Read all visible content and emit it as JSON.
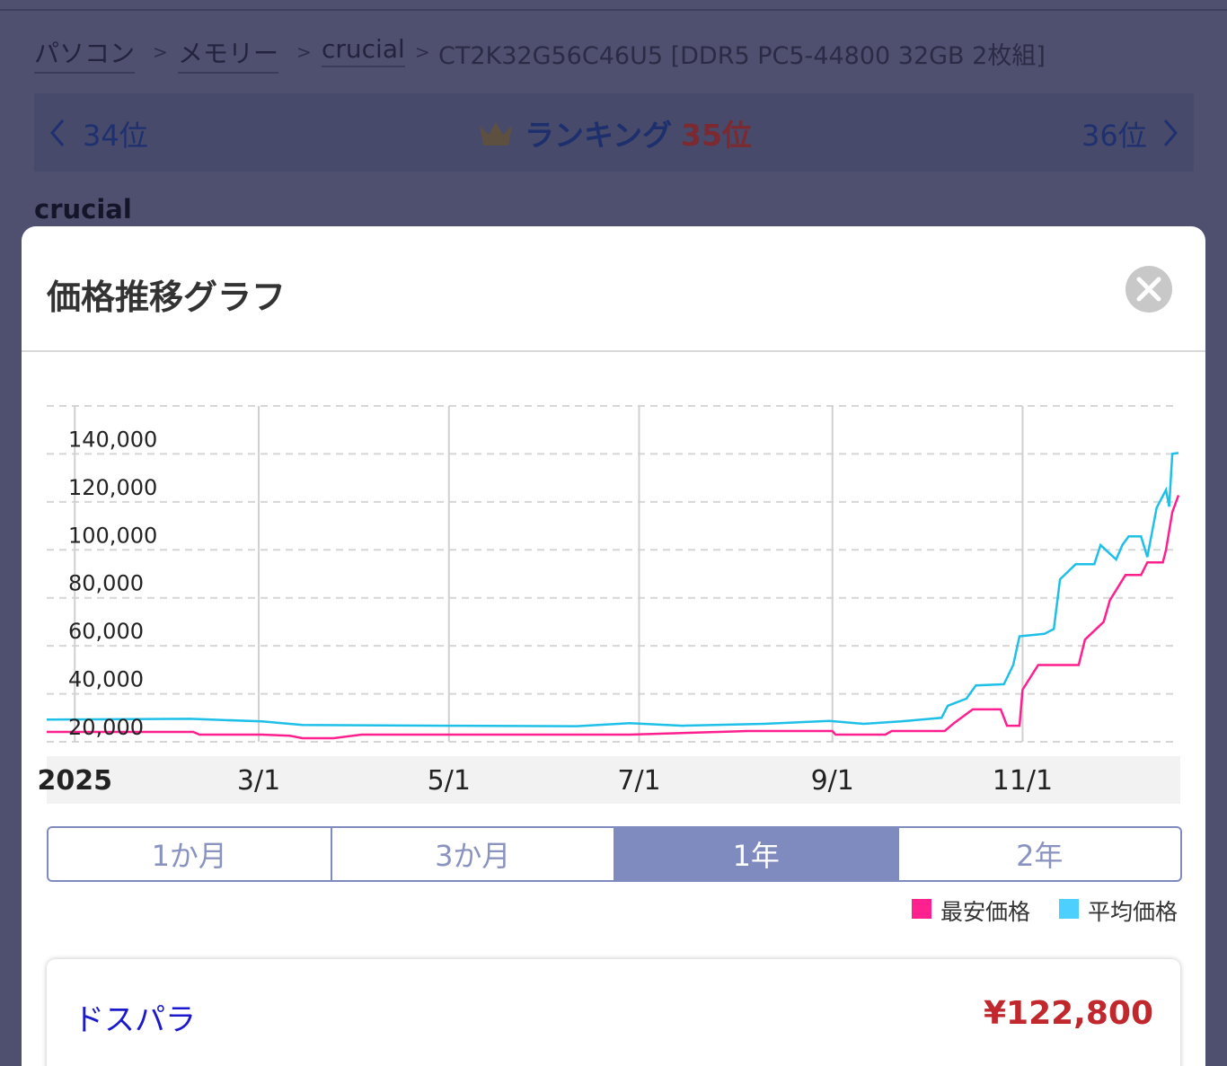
{
  "breadcrumb": {
    "items": [
      "パソコン",
      "メモリー",
      "crucial",
      "CT2K32G56C46U5 [DDR5 PC5-44800 32GB 2枚組]"
    ],
    "separator": ">"
  },
  "ranking": {
    "prev": "34位",
    "label": "ランキング",
    "current": "35位",
    "next": "36位"
  },
  "brand": "crucial",
  "modal": {
    "title": "価格推移グラフ"
  },
  "chart_data": {
    "type": "line",
    "xlim": [
      -9,
      354
    ],
    "xticks": [
      {
        "value": 0,
        "label": "2025"
      },
      {
        "value": 59,
        "label": "3/1"
      },
      {
        "value": 120,
        "label": "5/1"
      },
      {
        "value": 181,
        "label": "7/1"
      },
      {
        "value": 243,
        "label": "9/1"
      },
      {
        "value": 304,
        "label": "11/1"
      }
    ],
    "ylim": [
      20000,
      160000
    ],
    "yticks": [
      {
        "value": 20000,
        "label": "20,000"
      },
      {
        "value": 40000,
        "label": "40,000"
      },
      {
        "value": 60000,
        "label": "60,000"
      },
      {
        "value": 80000,
        "label": "80,000"
      },
      {
        "value": 100000,
        "label": "100,000"
      },
      {
        "value": 120000,
        "label": "120,000"
      },
      {
        "value": 140000,
        "label": "140,000"
      }
    ],
    "grid": true,
    "series": [
      {
        "name": "最安価格",
        "color": "#ff1f8e",
        "x": [
          -9,
          38,
          40,
          60,
          69,
          73,
          83,
          92,
          120,
          178,
          216,
          243,
          244,
          260,
          262,
          279,
          282,
          288,
          297,
          299,
          303,
          304,
          309,
          322,
          324,
          330,
          332,
          337,
          342,
          344,
          349,
          350,
          352,
          354
        ],
        "values": [
          24100,
          24100,
          23000,
          23000,
          22500,
          21500,
          21500,
          23000,
          23000,
          23000,
          24500,
          24500,
          23000,
          23000,
          24500,
          24500,
          27800,
          33500,
          33500,
          26700,
          26700,
          41700,
          52000,
          52000,
          62600,
          70000,
          79000,
          89500,
          89500,
          94800,
          94800,
          100000,
          115700,
          122800
        ]
      },
      {
        "name": "平均価格",
        "color": "#1ec0e8",
        "x": [
          -9,
          37,
          60,
          73,
          120,
          161,
          178,
          195,
          221,
          242,
          253,
          265,
          278,
          280,
          286,
          289,
          298,
          301,
          303,
          311,
          314,
          316,
          321,
          327,
          329,
          334,
          336,
          338,
          342,
          344,
          347,
          350,
          351,
          352,
          354
        ],
        "values": [
          29300,
          29600,
          28500,
          27000,
          26700,
          26500,
          27800,
          26700,
          27500,
          28700,
          27500,
          28500,
          30000,
          35000,
          38000,
          43500,
          44000,
          52000,
          64000,
          65000,
          67000,
          87700,
          94000,
          94000,
          102000,
          96000,
          102000,
          105600,
          105600,
          97000,
          117600,
          125000,
          118000,
          140000,
          140400
        ]
      }
    ]
  },
  "period_tabs": {
    "options": [
      "1か月",
      "3か月",
      "1年",
      "2年"
    ],
    "active": 2
  },
  "legend_colors": [
    "#ff2090",
    "#4dcfff"
  ],
  "shop": {
    "name": "ドスパラ",
    "price": "¥122,800"
  }
}
